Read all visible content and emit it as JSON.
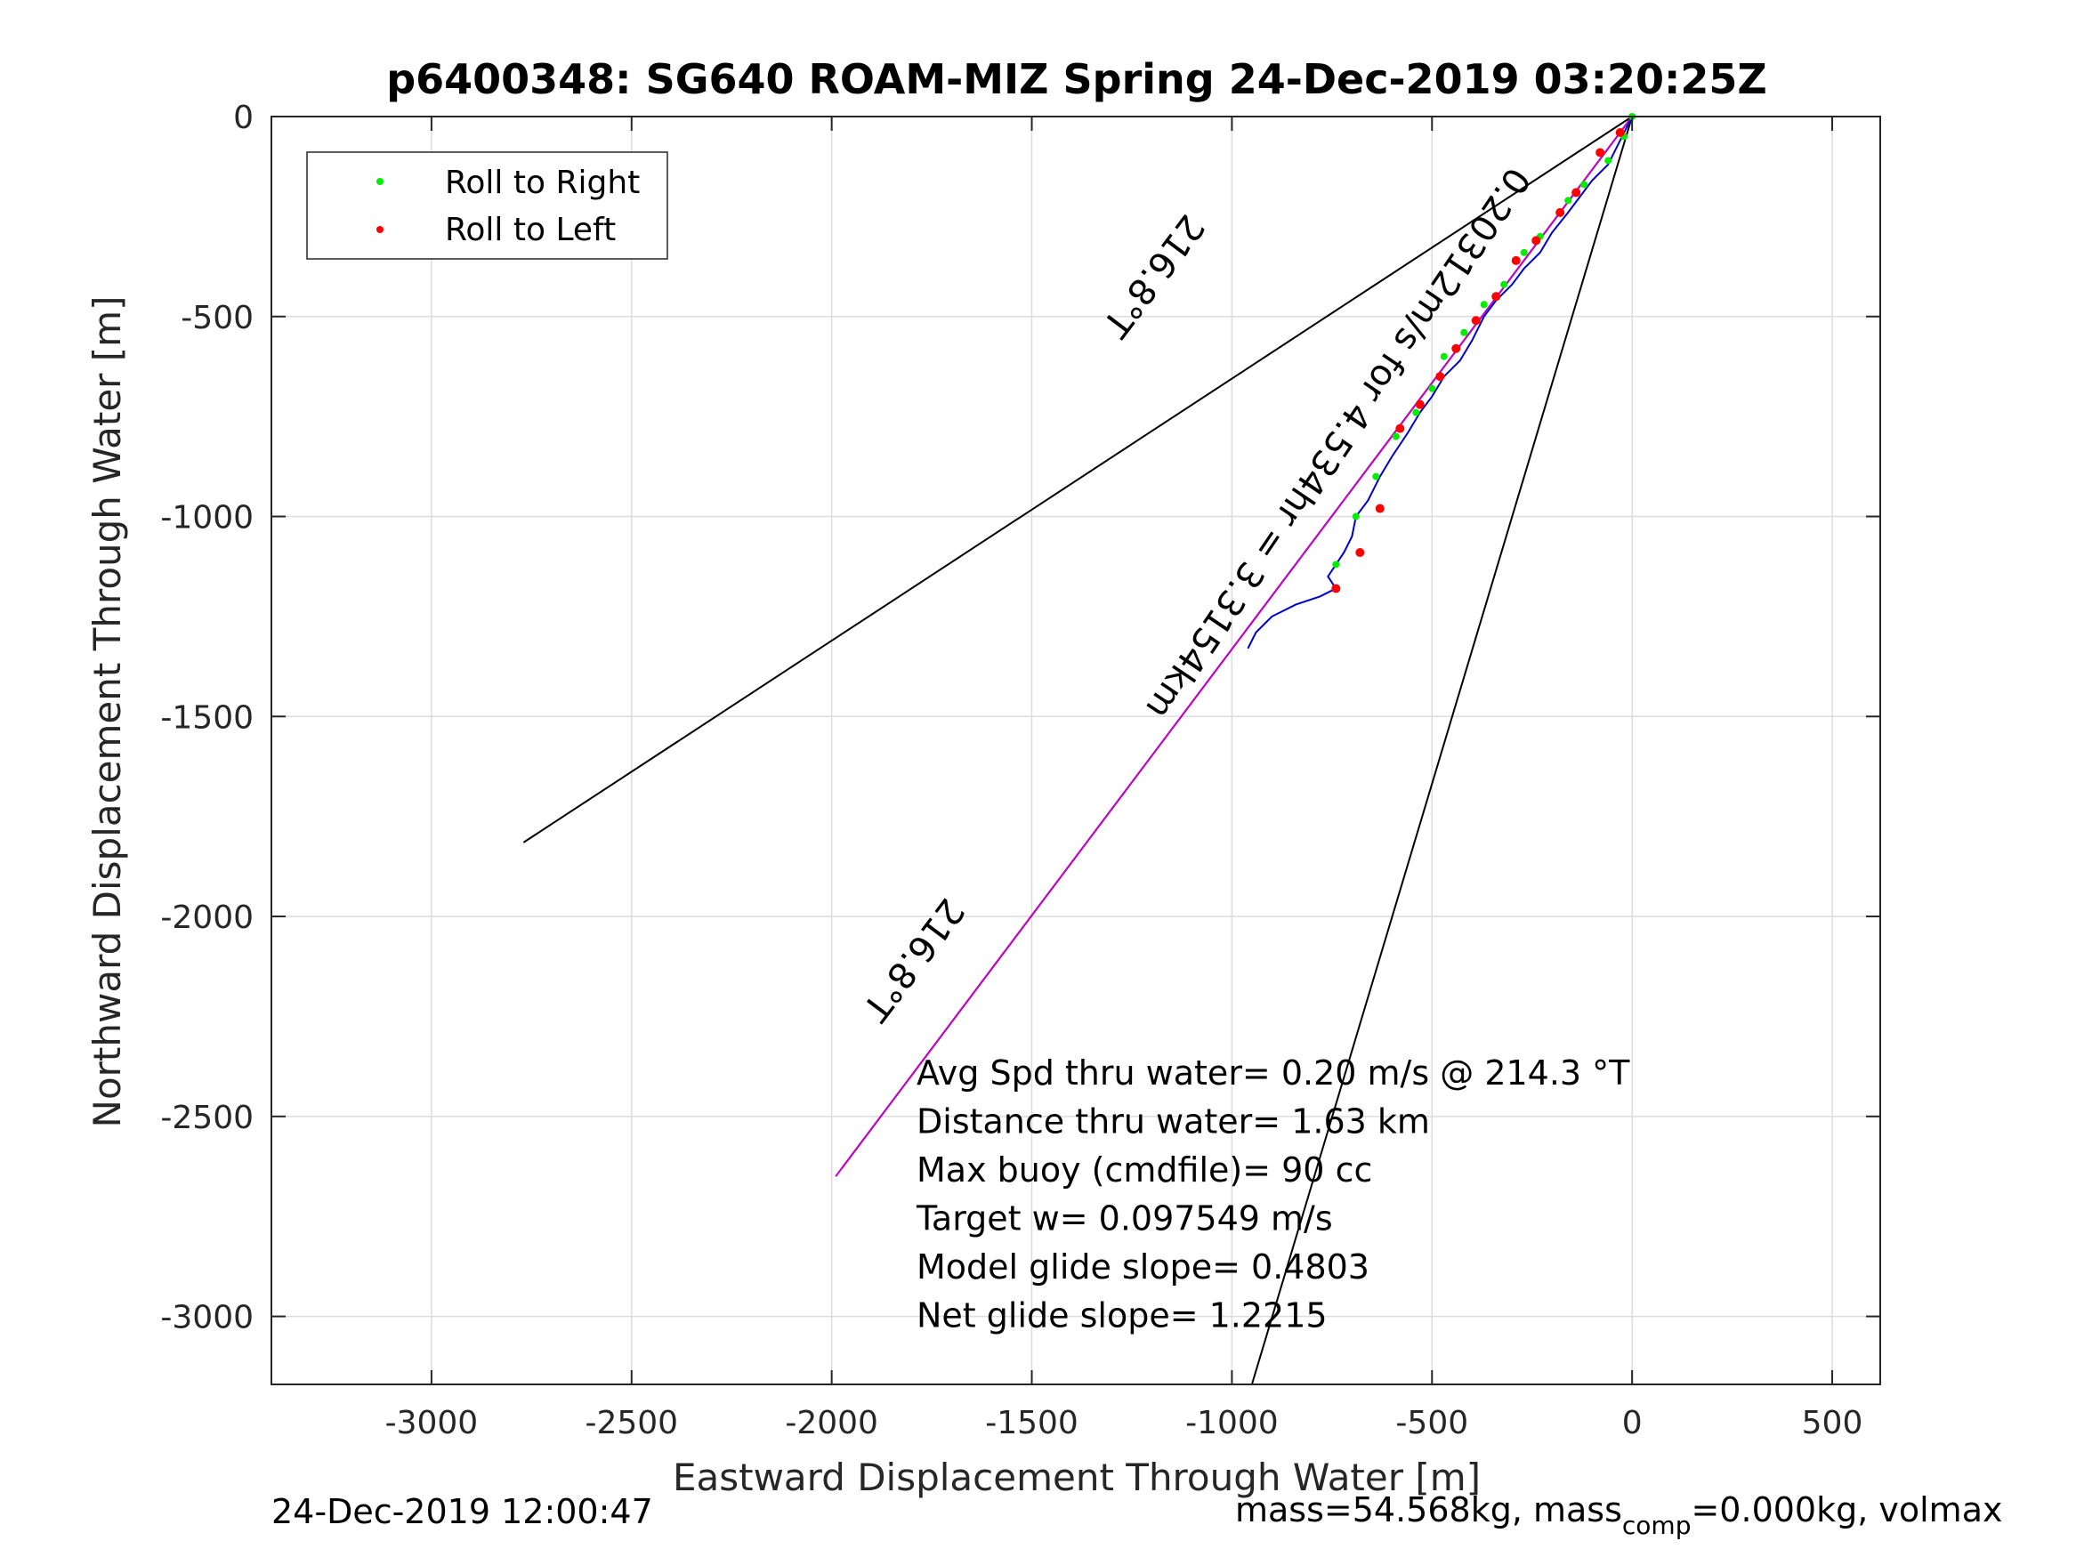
{
  "chart_data": {
    "type": "line",
    "title": "p6400348: SG640 ROAM-MIZ Spring 24-Dec-2019 03:20:25Z",
    "xlabel": "Eastward Displacement Through Water [m]",
    "ylabel": "Northward Displacement Through Water [m]",
    "xlim": [
      -3400,
      620
    ],
    "ylim": [
      -3170,
      0
    ],
    "grid": true,
    "xticks": [
      "-3000",
      "-2500",
      "-2000",
      "-1500",
      "-1000",
      "-500",
      "0",
      "500"
    ],
    "xtick_values": [
      -3000,
      -2500,
      -2000,
      -1500,
      -1000,
      -500,
      0,
      500
    ],
    "yticks": [
      "0",
      "-500",
      "-1000",
      "-1500",
      "-2000",
      "-2500",
      "-3000"
    ],
    "ytick_values": [
      0,
      -500,
      -1000,
      -1500,
      -2000,
      -2500,
      -3000
    ],
    "legend_placement": "top-left",
    "legend": [
      {
        "label": "Roll to Right",
        "color": "#00ee00"
      },
      {
        "label": "Roll to Left",
        "color": "#ff0000"
      }
    ],
    "lines": [
      {
        "x": [
          0,
          -2770
        ],
        "y": [
          0,
          -1815
        ],
        "color": "#000000"
      },
      {
        "x": [
          0,
          -950
        ],
        "y": [
          0,
          -3170
        ],
        "color": "#000000"
      },
      {
        "x": [
          0,
          -1975
        ],
        "y": [
          0,
          -2630
        ],
        "color": "#000000"
      },
      {
        "x": [
          0,
          -1990
        ],
        "y": [
          0,
          -2650
        ],
        "color": "#cc00cc"
      }
    ],
    "track": {
      "color": "#0000cc",
      "x": [
        0,
        -30,
        -60,
        -100,
        -130,
        -160,
        -200,
        -230,
        -270,
        -300,
        -340,
        -370,
        -400,
        -430,
        -470,
        -500,
        -530,
        -560,
        -600,
        -630,
        -660,
        -690,
        -700,
        -720,
        -740,
        -760,
        -740,
        -780,
        -840,
        -900,
        -940,
        -960
      ],
      "y": [
        0,
        -60,
        -120,
        -160,
        -200,
        -240,
        -290,
        -340,
        -380,
        -420,
        -460,
        -500,
        -560,
        -610,
        -650,
        -700,
        -740,
        -790,
        -850,
        -900,
        -960,
        -1000,
        -1050,
        -1090,
        -1120,
        -1150,
        -1180,
        -1200,
        -1220,
        -1250,
        -1290,
        -1330
      ]
    },
    "roll_right_points": {
      "x": [
        0,
        -20,
        -60,
        -120,
        -160,
        -230,
        -270,
        -320,
        -370,
        -420,
        -470,
        -500,
        -540,
        -590,
        -640,
        -690,
        -740
      ],
      "y": [
        0,
        -50,
        -110,
        -170,
        -210,
        -300,
        -340,
        -420,
        -470,
        -540,
        -600,
        -680,
        -740,
        -800,
        -900,
        -1000,
        -1120
      ]
    },
    "roll_left_points": {
      "x": [
        -30,
        -80,
        -140,
        -180,
        -240,
        -290,
        -340,
        -390,
        -440,
        -480,
        -530,
        -580,
        -630,
        -680,
        -740
      ],
      "y": [
        -40,
        -90,
        -190,
        -240,
        -310,
        -360,
        -450,
        -510,
        -580,
        -650,
        -720,
        -780,
        -980,
        -1090,
        -1180
      ]
    },
    "rotated_labels": [
      {
        "text": "216.8°T",
        "x": -1220,
        "y": -380,
        "angle": 127
      },
      {
        "text": "0.20312m/s for 4.534hr = 3.3154km",
        "x": -760,
        "y": -800,
        "angle": 124
      },
      {
        "text": "216.8°T",
        "x": -1820,
        "y": -2090,
        "angle": 127
      }
    ],
    "annotations": [
      "Avg Spd thru water=  0.20 m/s @ 214.3 °T",
      "Distance thru water=  1.63 km",
      "Max buoy (cmdfile)= 90 cc",
      "Target w= 0.097549 m/s",
      "Model glide slope= 0.4803",
      "Net glide slope= 1.2215"
    ]
  },
  "footer": {
    "left": "24-Dec-2019 12:00:47",
    "right_a": "mass=54.568kg, mass",
    "right_sub": "comp",
    "right_b": "=0.000kg, volmax"
  }
}
